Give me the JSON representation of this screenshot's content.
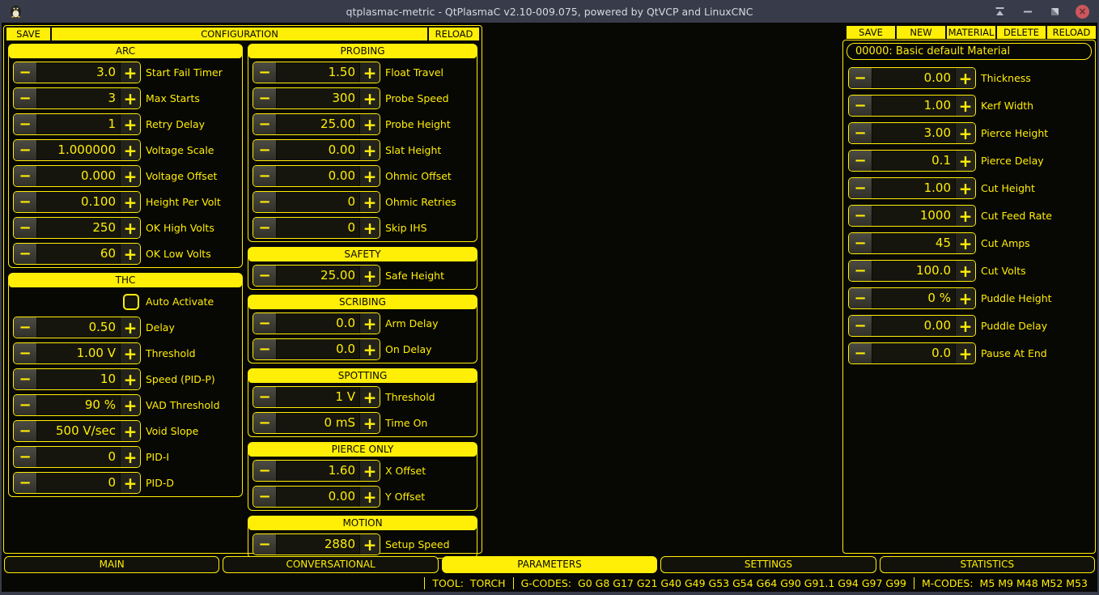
{
  "window": {
    "title": "qtplasmac-metric - QtPlasmaC v2.10-009.075, powered by QtVCP and LinuxCNC"
  },
  "colors": {
    "accent": "#ffee06",
    "titlebar": "#383c4a",
    "close_button": "#cc575d",
    "background": "#070703"
  },
  "icons": {
    "minus": "−",
    "plus": "+",
    "close": "×"
  },
  "config": {
    "save": "SAVE",
    "title": "CONFIGURATION",
    "reload": "RELOAD"
  },
  "left_sections": [
    {
      "title": "ARC",
      "rows": [
        {
          "label": "Start Fail Timer",
          "value": "3.0"
        },
        {
          "label": "Max Starts",
          "value": "3"
        },
        {
          "label": "Retry Delay",
          "value": "1"
        },
        {
          "label": "Voltage Scale",
          "value": "1.000000"
        },
        {
          "label": "Voltage Offset",
          "value": "0.000"
        },
        {
          "label": "Height Per Volt",
          "value": "0.100"
        },
        {
          "label": "OK High Volts",
          "value": "250"
        },
        {
          "label": "OK Low Volts",
          "value": "60"
        }
      ]
    },
    {
      "title": "THC",
      "checkbox": {
        "label": "Auto Activate",
        "checked": false
      },
      "rows": [
        {
          "label": "Delay",
          "value": "0.50"
        },
        {
          "label": "Threshold",
          "value": "1.00 V"
        },
        {
          "label": "Speed (PID-P)",
          "value": "10"
        },
        {
          "label": "VAD Threshold",
          "value": "90 %"
        },
        {
          "label": "Void Slope",
          "value": "500 V/sec"
        },
        {
          "label": "PID-I",
          "value": "0"
        },
        {
          "label": "PID-D",
          "value": "0"
        }
      ]
    }
  ],
  "middle_sections": [
    {
      "title": "PROBING",
      "rows": [
        {
          "label": "Float Travel",
          "value": "1.50"
        },
        {
          "label": "Probe Speed",
          "value": "300"
        },
        {
          "label": "Probe Height",
          "value": "25.00"
        },
        {
          "label": "Slat Height",
          "value": "0.00"
        },
        {
          "label": "Ohmic Offset",
          "value": "0.00"
        },
        {
          "label": "Ohmic Retries",
          "value": "0"
        },
        {
          "label": "Skip IHS",
          "value": "0"
        }
      ]
    },
    {
      "title": "SAFETY",
      "rows": [
        {
          "label": "Safe Height",
          "value": "25.00"
        }
      ]
    },
    {
      "title": "SCRIBING",
      "rows": [
        {
          "label": "Arm Delay",
          "value": "0.0"
        },
        {
          "label": "On Delay",
          "value": "0.0"
        }
      ]
    },
    {
      "title": "SPOTTING",
      "rows": [
        {
          "label": "Threshold",
          "value": "1 V"
        },
        {
          "label": "Time On",
          "value": "0 mS"
        }
      ]
    },
    {
      "title": "PIERCE ONLY",
      "rows": [
        {
          "label": "X Offset",
          "value": "1.60"
        },
        {
          "label": "Y Offset",
          "value": "0.00"
        }
      ]
    },
    {
      "title": "MOTION",
      "rows": [
        {
          "label": "Setup Speed",
          "value": "2880"
        }
      ]
    }
  ],
  "materials": {
    "buttons": [
      "SAVE",
      "NEW",
      "MATERIAL",
      "DELETE",
      "RELOAD"
    ],
    "selected": "00000: Basic default Material",
    "rows": [
      {
        "label": "Thickness",
        "value": "0.00"
      },
      {
        "label": "Kerf Width",
        "value": "1.00"
      },
      {
        "label": "Pierce Height",
        "value": "3.00"
      },
      {
        "label": "Pierce Delay",
        "value": "0.1"
      },
      {
        "label": "Cut Height",
        "value": "1.00"
      },
      {
        "label": "Cut Feed Rate",
        "value": "1000"
      },
      {
        "label": "Cut Amps",
        "value": "45"
      },
      {
        "label": "Cut Volts",
        "value": "100.0"
      },
      {
        "label": "Puddle Height",
        "value": "0 %"
      },
      {
        "label": "Puddle Delay",
        "value": "0.00"
      },
      {
        "label": "Pause At End",
        "value": "0.0"
      }
    ]
  },
  "tabs": [
    {
      "label": "MAIN",
      "active": false
    },
    {
      "label": "CONVERSATIONAL",
      "active": false
    },
    {
      "label": "PARAMETERS",
      "active": true
    },
    {
      "label": "SETTINGS",
      "active": false
    },
    {
      "label": "STATISTICS",
      "active": false
    }
  ],
  "statusbar": {
    "tool_label": "TOOL:",
    "tool_value": "TORCH",
    "gcodes_label": "G-CODES:",
    "gcodes_value": "G0 G8 G17 G21 G40 G49 G53 G54 G64 G90 G91.1 G94 G97 G99",
    "mcodes_label": "M-CODES:",
    "mcodes_value": "M5 M9 M48 M52 M53"
  }
}
